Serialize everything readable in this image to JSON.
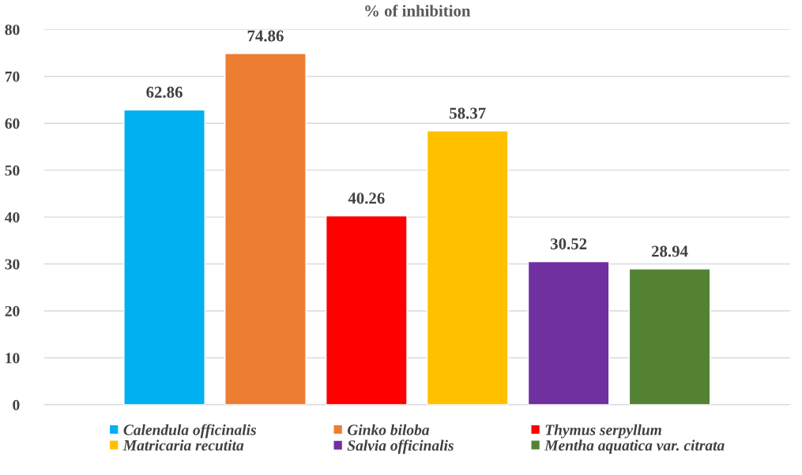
{
  "chart_data": {
    "type": "bar",
    "title": "% of inhibition",
    "categories": [
      null
    ],
    "series": [
      {
        "name": "Calendula officinalis",
        "color": "#00b0f0",
        "values": [
          62.86
        ]
      },
      {
        "name": "Ginko biloba",
        "color": "#ed7d31",
        "values": [
          74.86
        ]
      },
      {
        "name": "Thymus serpyllum",
        "color": "#ff0000",
        "values": [
          40.26
        ]
      },
      {
        "name": "Matricaria recutita",
        "color": "#ffc000",
        "values": [
          58.37
        ]
      },
      {
        "name": "Salvia officinalis",
        "color": "#7030a0",
        "values": [
          30.52
        ]
      },
      {
        "name": "Mentha aquatica var. citrata",
        "color": "#548235",
        "values": [
          28.94
        ]
      }
    ],
    "ylim": [
      0,
      80
    ],
    "yticks": [
      0,
      10,
      20,
      30,
      40,
      50,
      60,
      70,
      80
    ],
    "grid": "y",
    "legend": "bottom",
    "data_labels": true
  }
}
